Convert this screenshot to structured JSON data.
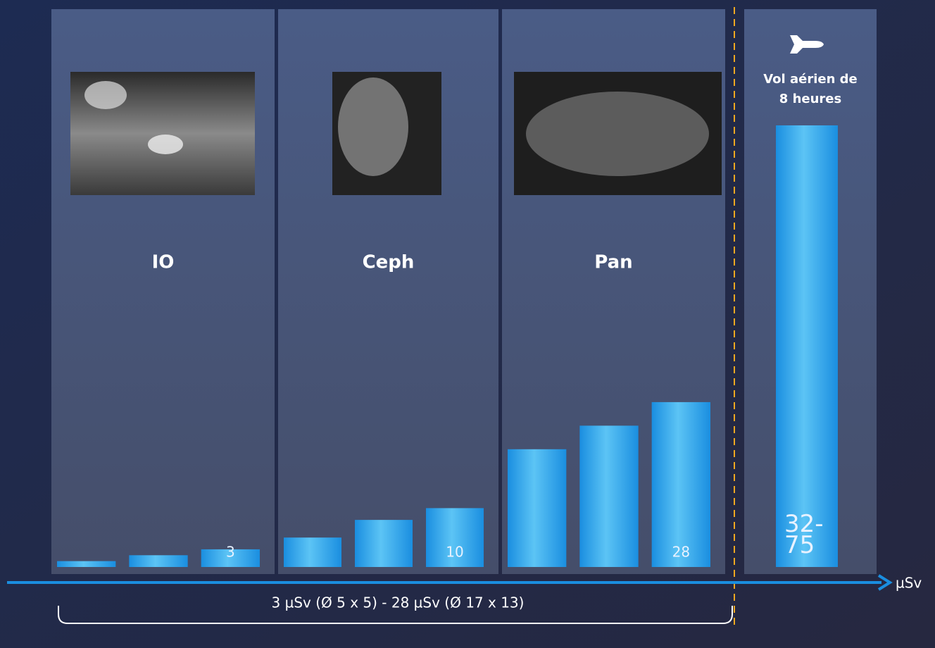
{
  "chart_data": {
    "type": "bar",
    "groups": [
      {
        "name": "IO",
        "values": [
          1,
          2,
          3
        ],
        "value_labels": [
          null,
          null,
          "3"
        ]
      },
      {
        "name": "Ceph",
        "values": [
          5,
          8,
          10
        ],
        "value_labels": [
          null,
          null,
          "10"
        ]
      },
      {
        "name": "Pan",
        "values": [
          20,
          24,
          28
        ],
        "value_labels": [
          null,
          null,
          "28"
        ]
      }
    ],
    "reference": {
      "label_lines": [
        "Vol aérien de",
        "8 heures"
      ],
      "value": 75,
      "value_label": "32-75"
    },
    "ylim": [
      0,
      75
    ],
    "x_label": "µSv",
    "annotation": "3 µSv (Ø 5 x 5) - 28 µSv (Ø 17 x 13)",
    "color": "#1a8ee0"
  }
}
